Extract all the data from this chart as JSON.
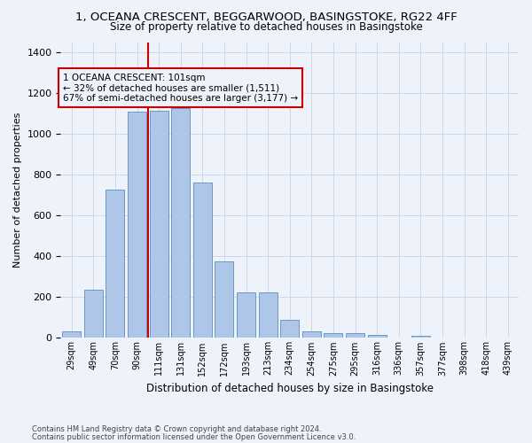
{
  "title_line1": "1, OCEANA CRESCENT, BEGGARWOOD, BASINGSTOKE, RG22 4FF",
  "title_line2": "Size of property relative to detached houses in Basingstoke",
  "xlabel": "Distribution of detached houses by size in Basingstoke",
  "ylabel": "Number of detached properties",
  "footnote1": "Contains HM Land Registry data © Crown copyright and database right 2024.",
  "footnote2": "Contains public sector information licensed under the Open Government Licence v3.0.",
  "categories": [
    "29sqm",
    "49sqm",
    "70sqm",
    "90sqm",
    "111sqm",
    "131sqm",
    "152sqm",
    "172sqm",
    "193sqm",
    "213sqm",
    "234sqm",
    "254sqm",
    "275sqm",
    "295sqm",
    "316sqm",
    "336sqm",
    "357sqm",
    "377sqm",
    "398sqm",
    "418sqm",
    "439sqm"
  ],
  "values": [
    30,
    235,
    725,
    1110,
    1115,
    1125,
    760,
    375,
    225,
    225,
    90,
    30,
    22,
    22,
    15,
    0,
    10,
    0,
    0,
    0,
    0
  ],
  "bar_color": "#aec6e8",
  "bar_edge_color": "#5a8fc0",
  "grid_color": "#d0d8e8",
  "vline_color": "#cc0000",
  "vline_pos": 3.5,
  "annotation_text": "1 OCEANA CRESCENT: 101sqm\n← 32% of detached houses are smaller (1,511)\n67% of semi-detached houses are larger (3,177) →",
  "ylim": [
    0,
    1450
  ],
  "bg_color": "#eef2fa"
}
